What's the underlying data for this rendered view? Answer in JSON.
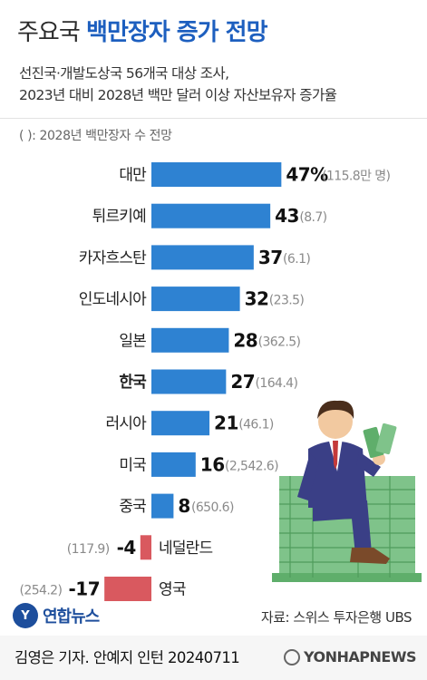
{
  "header": {
    "title_light": "주요국",
    "title_bold": "백만장자 증가 전망",
    "subtitle_line1": "선진국·개발도상국 56개국 대상 조사,",
    "subtitle_line2": "2023년 대비 2028년 백만 달러 이상 자산보유자 증가율",
    "note": "( ): 2028년 백만장자 수 전망"
  },
  "chart_data": {
    "type": "bar",
    "orientation": "horizontal",
    "categories": [
      "대만",
      "튀르키예",
      "카자흐스탄",
      "인도네시아",
      "일본",
      "한국",
      "러시아",
      "미국",
      "중국",
      "네덜란드",
      "영국"
    ],
    "values": [
      47,
      43,
      37,
      32,
      28,
      27,
      21,
      16,
      8,
      -4,
      -17
    ],
    "value_labels": [
      "47%",
      "43",
      "37",
      "32",
      "28",
      "27",
      "21",
      "16",
      "8",
      "-4",
      "-17"
    ],
    "projected_millionaires_2028": [
      "(115.8만 명)",
      "(8.7)",
      "(6.1)",
      "(23.5)",
      "(362.5)",
      "(164.4)",
      "(46.1)",
      "(2,542.6)",
      "(650.6)",
      "(117.9)",
      "(254.2)"
    ],
    "highlight_category": "한국",
    "colors": {
      "positive": "#2e82d2",
      "negative": "#d9595f"
    }
  },
  "footer": {
    "logo_mark": "Y",
    "logo_name": "연합뉴스",
    "source": "자료: 스위스 투자은행 UBS",
    "credit": "김영은 기자. 안예지 인턴  20240711",
    "agency": "YONHAPNEWS"
  }
}
